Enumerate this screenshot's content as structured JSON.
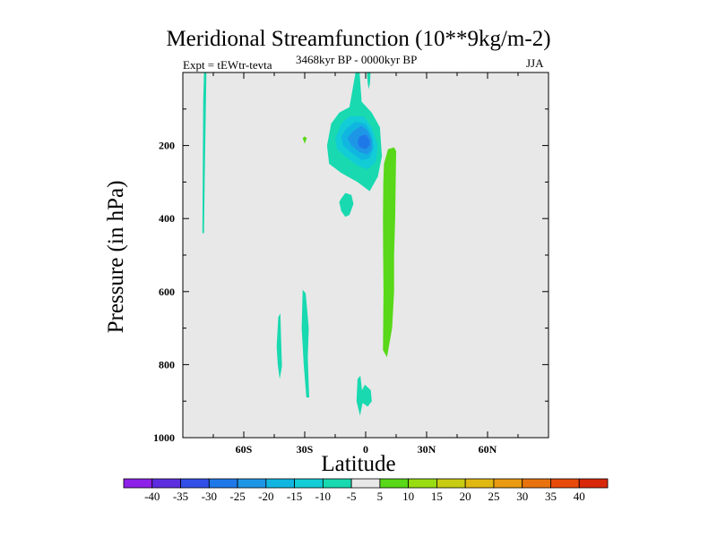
{
  "chart_data": {
    "type": "heatmap",
    "title": "Meridional Streamfunction (10**9kg/m-2)",
    "subtitle": "3468kyr BP - 0000kyr BP",
    "left_label": "Expt = tEWtr-tevta",
    "right_label": "JJA",
    "xlabel": "Latitude",
    "ylabel": "Pressure (in hPa)",
    "xlim": [
      -90,
      90
    ],
    "ylim": [
      0,
      1000
    ],
    "y_inverted": true,
    "x_ticks": [
      {
        "value": -60,
        "label": "60S"
      },
      {
        "value": -30,
        "label": "30S"
      },
      {
        "value": 0,
        "label": "0"
      },
      {
        "value": 30,
        "label": "30N"
      },
      {
        "value": 60,
        "label": "60N"
      }
    ],
    "y_ticks": [
      {
        "value": 200,
        "label": "200"
      },
      {
        "value": 400,
        "label": "400"
      },
      {
        "value": 600,
        "label": "600"
      },
      {
        "value": 800,
        "label": "800"
      },
      {
        "value": 1000,
        "label": "1000"
      }
    ],
    "colorbar": {
      "levels": [
        "-40",
        "-35",
        "-30",
        "-25",
        "-20",
        "-15",
        "-10",
        "-5",
        "5",
        "10",
        "15",
        "20",
        "25",
        "30",
        "35",
        "40"
      ],
      "colors": [
        "#8e20e8",
        "#5d2ee0",
        "#3250e8",
        "#1f78e8",
        "#1e96e6",
        "#11b6e0",
        "#12ccd6",
        "#18d9b0",
        "#e8e8e8",
        "#58d818",
        "#98dc12",
        "#c8cc12",
        "#e0b812",
        "#e89a10",
        "#e8720e",
        "#e84a0a",
        "#d8280a"
      ]
    },
    "background_color": "#e8e8e8",
    "contours": [
      {
        "level": -5,
        "points": [
          [
            -79.6,
            0
          ],
          [
            -78.4,
            0
          ],
          [
            -78.6,
            80
          ],
          [
            -79.2,
            280
          ],
          [
            -79.6,
            440
          ],
          [
            -80.4,
            440
          ],
          [
            -80.2,
            280
          ],
          [
            -80,
            80
          ]
        ]
      },
      {
        "level": -5,
        "points": [
          [
            -5,
            0
          ],
          [
            -3,
            0
          ],
          [
            -2,
            80
          ],
          [
            3,
            110
          ],
          [
            7,
            150
          ],
          [
            8,
            230
          ],
          [
            6,
            285
          ],
          [
            2,
            325
          ],
          [
            -4,
            300
          ],
          [
            -12,
            275
          ],
          [
            -18,
            250
          ],
          [
            -19,
            200
          ],
          [
            -17,
            140
          ],
          [
            -13,
            110
          ],
          [
            -8,
            95
          ]
        ]
      },
      {
        "level": -5,
        "points": [
          [
            0.6,
            0
          ],
          [
            2.4,
            0
          ],
          [
            2.1,
            30
          ],
          [
            1.5,
            45
          ],
          [
            1,
            30
          ]
        ]
      },
      {
        "level": -5,
        "points": [
          [
            -12,
            345
          ],
          [
            -10,
            330
          ],
          [
            -7,
            335
          ],
          [
            -6,
            360
          ],
          [
            -8,
            390
          ],
          [
            -10,
            395
          ],
          [
            -12,
            380
          ],
          [
            -13,
            355
          ]
        ]
      },
      {
        "level": -5,
        "points": [
          [
            -43,
            670
          ],
          [
            -42,
            660
          ],
          [
            -41.5,
            750
          ],
          [
            -41.2,
            805
          ],
          [
            -42.3,
            840
          ],
          [
            -43.3,
            800
          ],
          [
            -43.8,
            750
          ]
        ]
      },
      {
        "level": -5,
        "points": [
          [
            -31,
            595
          ],
          [
            -29.5,
            605
          ],
          [
            -28,
            700
          ],
          [
            -28.5,
            780
          ],
          [
            -27.8,
            890
          ],
          [
            -29.2,
            890
          ],
          [
            -30.5,
            800
          ],
          [
            -31.5,
            700
          ]
        ]
      },
      {
        "level": -5,
        "points": [
          [
            -4,
            840
          ],
          [
            -2.6,
            830
          ],
          [
            -1.8,
            870
          ],
          [
            -0.4,
            855
          ],
          [
            2.5,
            870
          ],
          [
            3,
            900
          ],
          [
            1,
            915
          ],
          [
            -1.5,
            905
          ],
          [
            -2.8,
            940
          ],
          [
            -4.5,
            900
          ]
        ]
      },
      {
        "level": -10,
        "points": [
          [
            -12,
            140
          ],
          [
            -8,
            120
          ],
          [
            -1,
            120
          ],
          [
            3,
            150
          ],
          [
            6,
            200
          ],
          [
            5,
            245
          ],
          [
            1,
            265
          ],
          [
            -4,
            255
          ],
          [
            -10,
            230
          ],
          [
            -14,
            210
          ],
          [
            -15,
            180
          ]
        ]
      },
      {
        "level": -15,
        "points": [
          [
            -9,
            150
          ],
          [
            -5,
            135
          ],
          [
            0,
            140
          ],
          [
            3,
            170
          ],
          [
            4,
            205
          ],
          [
            2,
            235
          ],
          [
            -2,
            240
          ],
          [
            -7,
            220
          ],
          [
            -11,
            200
          ],
          [
            -12,
            175
          ]
        ]
      },
      {
        "level": -20,
        "points": [
          [
            -6,
            160
          ],
          [
            -2,
            145
          ],
          [
            1,
            160
          ],
          [
            3,
            185
          ],
          [
            3,
            210
          ],
          [
            1,
            225
          ],
          [
            -3,
            218
          ],
          [
            -7,
            200
          ],
          [
            -9,
            180
          ]
        ]
      },
      {
        "level": -25,
        "points": [
          [
            -3,
            175
          ],
          [
            0,
            170
          ],
          [
            2,
            185
          ],
          [
            2,
            200
          ],
          [
            0,
            210
          ],
          [
            -3,
            205
          ],
          [
            -4,
            190
          ]
        ]
      },
      {
        "level": 5,
        "points": [
          [
            9,
            250
          ],
          [
            11,
            210
          ],
          [
            14,
            205
          ],
          [
            15,
            215
          ],
          [
            14.8,
            300
          ],
          [
            14.5,
            400
          ],
          [
            14,
            500
          ],
          [
            14,
            600
          ],
          [
            13,
            700
          ],
          [
            10.5,
            780
          ],
          [
            8.5,
            760
          ],
          [
            8.8,
            600
          ],
          [
            8.6,
            500
          ],
          [
            8.5,
            400
          ],
          [
            8.7,
            300
          ]
        ]
      },
      {
        "level": 5,
        "points": [
          [
            -31,
            180
          ],
          [
            -30,
            175
          ],
          [
            -29,
            180
          ],
          [
            -30,
            195
          ]
        ]
      }
    ]
  }
}
